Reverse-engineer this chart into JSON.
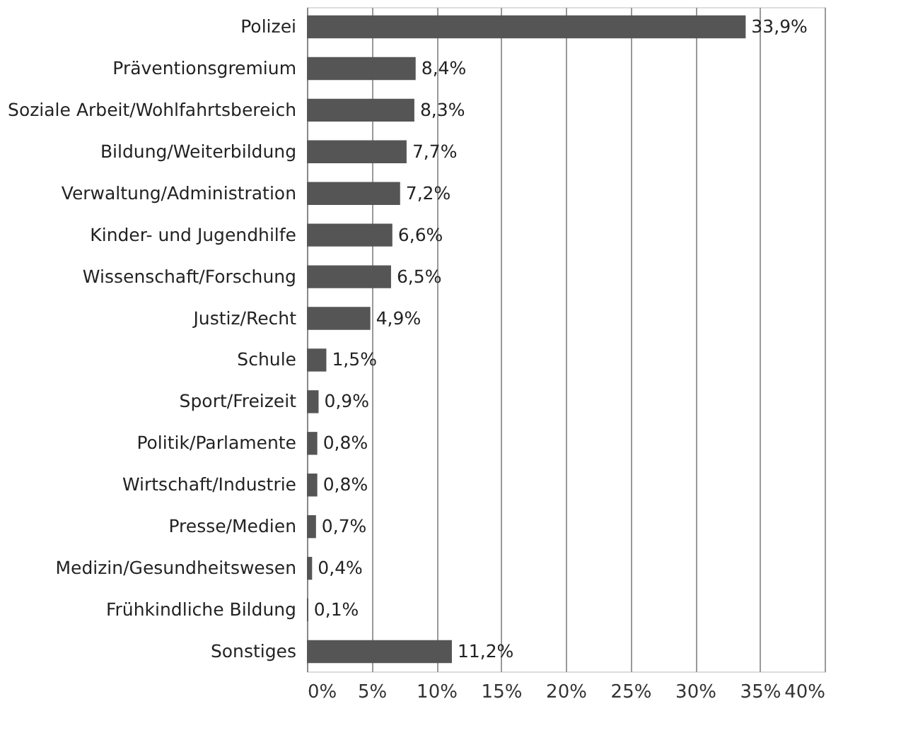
{
  "chart_data": {
    "type": "bar",
    "orientation": "horizontal",
    "categories": [
      "Polizei",
      "Präventionsgremium",
      "Soziale Arbeit/Wohlfahrtsbereich",
      "Bildung/Weiterbildung",
      "Verwaltung/Administration",
      "Kinder- und Jugendhilfe",
      "Wissenschaft/Forschung",
      "Justiz/Recht",
      "Schule",
      "Sport/Freizeit",
      "Politik/Parlamente",
      "Wirtschaft/Industrie",
      "Presse/Medien",
      "Medizin/Gesundheitswesen",
      "Frühkindliche Bildung",
      "Sonstiges"
    ],
    "values": [
      33.9,
      8.4,
      8.3,
      7.7,
      7.2,
      6.6,
      6.5,
      4.9,
      1.5,
      0.9,
      0.8,
      0.8,
      0.7,
      0.4,
      0.1,
      11.2
    ],
    "value_labels": [
      "33,9%",
      "8,4%",
      "8,3%",
      "7,7%",
      "7,2%",
      "6,6%",
      "6,5%",
      "4,9%",
      "1,5%",
      "0,9%",
      "0,8%",
      "0,8%",
      "0,7%",
      "0,4%",
      "0,1%",
      "11,2%"
    ],
    "color": "#555555",
    "xlim": [
      0,
      40
    ],
    "xticks": [
      {
        "value": 0,
        "label": "0%"
      },
      {
        "value": 5,
        "label": "5%"
      },
      {
        "value": 10,
        "label": "10%"
      },
      {
        "value": 15,
        "label": "15%"
      },
      {
        "value": 20,
        "label": "20%"
      },
      {
        "value": 25,
        "label": "25%"
      },
      {
        "value": 30,
        "label": "30%"
      },
      {
        "value": 35,
        "label": "35%"
      },
      {
        "value": 40,
        "label": "40%"
      }
    ],
    "grid": "x"
  }
}
